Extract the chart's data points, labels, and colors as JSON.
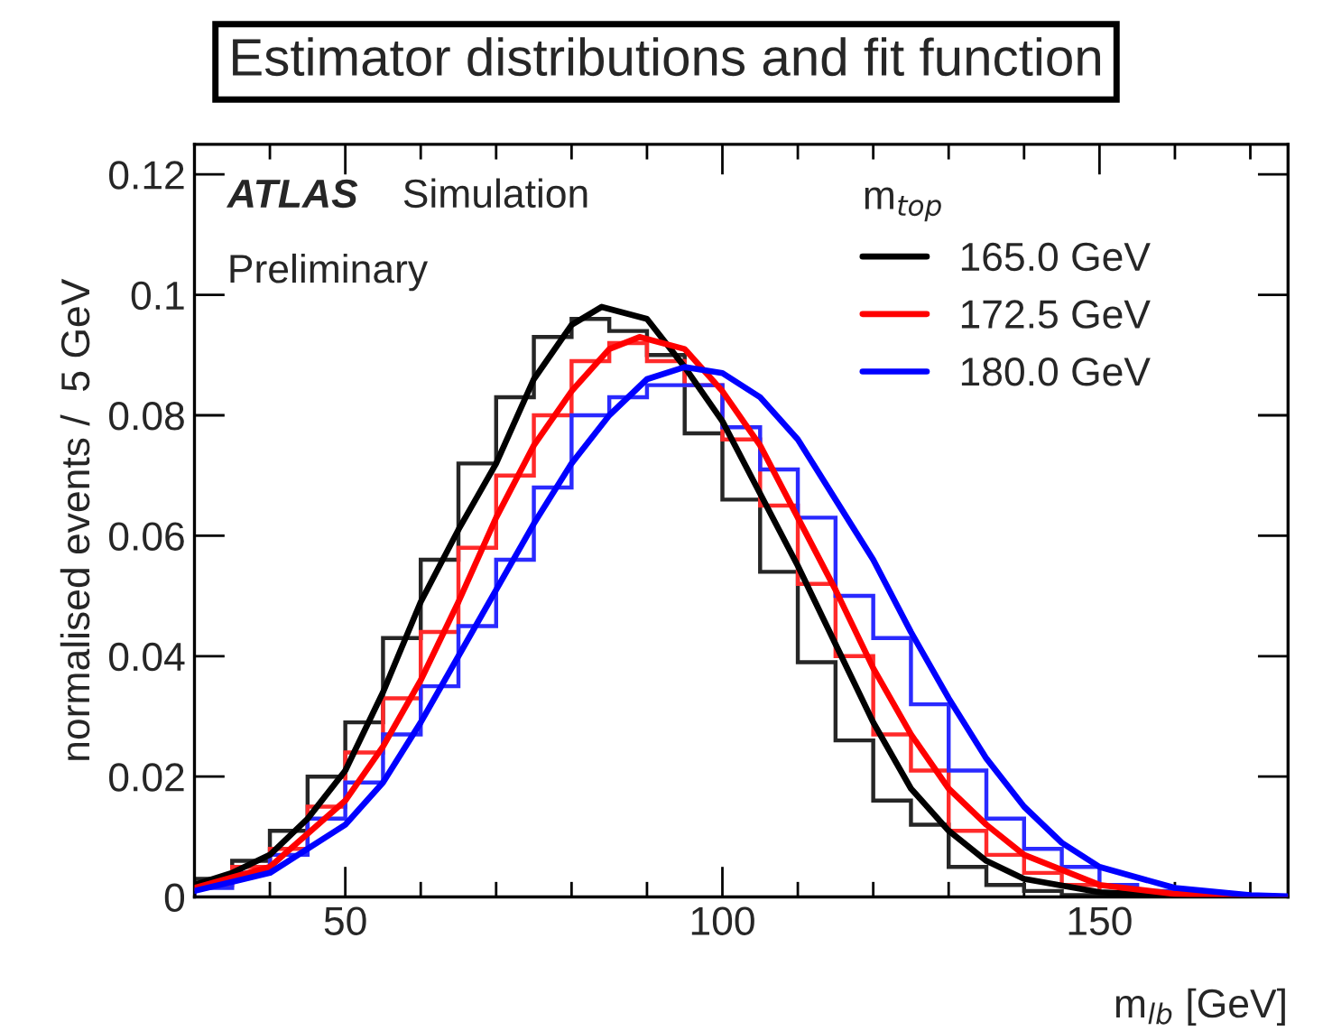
{
  "chart_data": {
    "type": "histogram",
    "title": "Estimator distributions and fit function",
    "xlabel": "m$_{lb}$ [GeV]",
    "ylabel": "normalised events /  5 GeV",
    "legend_title": "m$_{top}$",
    "annotations": [
      "ATLAS",
      "Simulation",
      "Preliminary"
    ],
    "bins": [
      30,
      35,
      40,
      45,
      50,
      55,
      60,
      65,
      70,
      75,
      80,
      85,
      90,
      95,
      100,
      105,
      110,
      115,
      120,
      125,
      130,
      135,
      140,
      145,
      150,
      155,
      160,
      165,
      170,
      175
    ],
    "series": [
      {
        "color": "#262626",
        "values": [
          0.003,
          0.006,
          0.011,
          0.02,
          0.029,
          0.043,
          0.056,
          0.072,
          0.083,
          0.093,
          0.096,
          0.094,
          0.09,
          0.077,
          0.066,
          0.054,
          0.039,
          0.026,
          0.016,
          0.012,
          0.005,
          0.002,
          0.001,
          0.0003,
          0.0002,
          0.0001,
          0,
          0,
          0
        ]
      },
      {
        "color": "#ff2a2a",
        "values": [
          0.002,
          0.005,
          0.008,
          0.015,
          0.024,
          0.033,
          0.044,
          0.058,
          0.07,
          0.08,
          0.089,
          0.092,
          0.089,
          0.085,
          0.076,
          0.065,
          0.052,
          0.04,
          0.027,
          0.021,
          0.011,
          0.007,
          0.004,
          0.002,
          0.0008,
          0.0004,
          0.0002,
          0.0001,
          0
        ]
      },
      {
        "color": "#2a2aff",
        "values": [
          0.0015,
          0.004,
          0.007,
          0.013,
          0.019,
          0.027,
          0.035,
          0.045,
          0.056,
          0.068,
          0.08,
          0.083,
          0.085,
          0.085,
          0.078,
          0.071,
          0.063,
          0.05,
          0.043,
          0.032,
          0.021,
          0.013,
          0.008,
          0.005,
          0.002,
          0.001,
          0.0005,
          0.0003,
          0.0001
        ]
      },
      {
        "type": "line",
        "name": "165.0 GeV",
        "color": "#000000",
        "x": [
          30,
          35,
          40,
          45,
          50,
          55,
          60,
          65,
          70,
          75,
          80,
          84,
          90,
          95,
          100,
          105,
          110,
          115,
          120,
          125,
          130,
          135,
          140,
          150,
          160,
          175
        ],
        "values": [
          0.002,
          0.004,
          0.007,
          0.013,
          0.021,
          0.034,
          0.049,
          0.061,
          0.072,
          0.086,
          0.095,
          0.098,
          0.096,
          0.088,
          0.079,
          0.067,
          0.055,
          0.042,
          0.029,
          0.018,
          0.011,
          0.006,
          0.003,
          0.0008,
          0.0002,
          0
        ]
      },
      {
        "type": "line",
        "name": "172.5 GeV",
        "color": "#ff0000",
        "x": [
          30,
          40,
          50,
          55,
          60,
          65,
          70,
          75,
          80,
          85,
          89,
          95,
          100,
          105,
          110,
          115,
          120,
          125,
          130,
          135,
          140,
          150,
          160,
          175
        ],
        "values": [
          0.0015,
          0.005,
          0.016,
          0.025,
          0.036,
          0.049,
          0.063,
          0.075,
          0.084,
          0.091,
          0.093,
          0.091,
          0.084,
          0.075,
          0.063,
          0.051,
          0.038,
          0.027,
          0.018,
          0.012,
          0.007,
          0.002,
          0.0005,
          0
        ]
      },
      {
        "type": "line",
        "name": "180.0 GeV",
        "color": "#0000ff",
        "x": [
          30,
          40,
          50,
          55,
          60,
          65,
          70,
          75,
          80,
          85,
          90,
          95,
          100,
          105,
          110,
          115,
          120,
          125,
          130,
          135,
          140,
          145,
          150,
          160,
          170,
          175
        ],
        "values": [
          0.001,
          0.004,
          0.012,
          0.019,
          0.029,
          0.04,
          0.051,
          0.062,
          0.072,
          0.08,
          0.086,
          0.088,
          0.087,
          0.083,
          0.076,
          0.066,
          0.056,
          0.044,
          0.033,
          0.023,
          0.015,
          0.009,
          0.005,
          0.0015,
          0.0003,
          0.0001
        ]
      }
    ],
    "xlim": [
      30,
      175
    ],
    "ylim": [
      0,
      0.125
    ],
    "xticks": [
      {
        "value": 40,
        "label": null
      },
      50,
      {
        "value": 60,
        "label": null
      },
      {
        "value": 70,
        "label": null
      },
      {
        "value": 80,
        "label": null
      },
      {
        "value": 90,
        "label": null
      },
      100,
      {
        "value": 110,
        "label": null
      },
      {
        "value": 120,
        "label": null
      },
      {
        "value": 130,
        "label": null
      },
      {
        "value": 140,
        "label": null
      },
      150,
      {
        "value": 160,
        "label": null
      },
      {
        "value": 170,
        "label": null
      }
    ],
    "yticks": [
      0,
      0.02,
      0.04,
      0.06,
      0.08,
      0.1,
      0.12
    ],
    "grid": false,
    "legend": "top right"
  }
}
